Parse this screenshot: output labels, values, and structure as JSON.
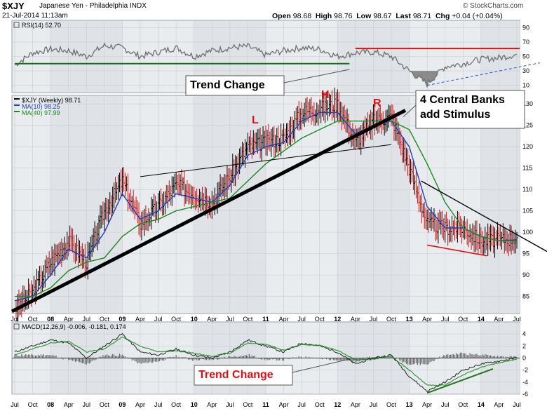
{
  "header": {
    "symbol": "$XJY",
    "name": "Japanese Yen - Philadelphia",
    "exchange": "INDX",
    "timestamp": "21-Jul-2014 11:13am",
    "open_label": "Open",
    "open": "98.68",
    "high_label": "High",
    "high": "98.76",
    "low_label": "Low",
    "low": "98.67",
    "last_label": "Last",
    "last": "98.71",
    "chg_label": "Chg",
    "chg": "+0.04 (+0.04%)",
    "copyright": "© StockCharts.com"
  },
  "colors": {
    "panel_bg": "#e9ecef",
    "price_bar": "#000000",
    "ma10": "#1f3fbf",
    "ma40": "#1a8a1a",
    "trendline": "#000000",
    "rsi_line": "#6e6e6e",
    "rsi_fill": "#7a7a7a",
    "rsi_level_red": "#e01010",
    "rsi_level_green": "#1a6e1a",
    "annotation_red": "#e01010",
    "macd_hist": "#666666"
  },
  "chart_data": [
    {
      "type": "line",
      "panel": "RSI",
      "legend": "RSI(14) 52.70",
      "ylim": [
        0,
        100
      ],
      "y_ticks": [
        10,
        30,
        50,
        70,
        90
      ],
      "series": [
        {
          "name": "RSI(14)",
          "x": [
            "2007-07",
            "2007-10",
            "2008-01",
            "2008-04",
            "2008-07",
            "2008-10",
            "2009-01",
            "2009-04",
            "2009-07",
            "2009-10",
            "2010-01",
            "2010-04",
            "2010-07",
            "2010-10",
            "2011-01",
            "2011-04",
            "2011-07",
            "2011-10",
            "2012-01",
            "2012-04",
            "2012-07",
            "2012-10",
            "2013-01",
            "2013-04",
            "2013-07",
            "2013-10",
            "2014-01",
            "2014-04",
            "2014-07"
          ],
          "values": [
            38,
            55,
            60,
            58,
            50,
            65,
            62,
            50,
            56,
            62,
            50,
            58,
            62,
            64,
            52,
            58,
            62,
            60,
            50,
            55,
            56,
            50,
            30,
            12,
            36,
            40,
            46,
            48,
            52.7
          ]
        }
      ],
      "levels": [
        {
          "value": 61,
          "from": "2012-04",
          "color": "red"
        },
        {
          "value": 40,
          "from": "2007-07",
          "to": "2012-03",
          "color": "green"
        }
      ]
    },
    {
      "type": "line",
      "panel": "Price",
      "legend": [
        "$XJY (Weekly) 98.71",
        "MA(10) 98.25",
        "MA(40) 97.99"
      ],
      "ylim": [
        81,
        132
      ],
      "y_ticks": [
        85,
        90,
        95,
        100,
        105,
        110,
        115,
        120,
        125,
        130
      ],
      "x_ticks": [
        "Jul",
        "Oct",
        "08",
        "Apr",
        "Jul",
        "Oct",
        "09",
        "Apr",
        "Jul",
        "Oct",
        "10",
        "Apr",
        "Jul",
        "Oct",
        "11",
        "Apr",
        "Jul",
        "Oct",
        "12",
        "Apr",
        "Jul",
        "Oct",
        "13",
        "Apr",
        "Jul",
        "Oct",
        "14",
        "Apr",
        "Jul"
      ],
      "series": [
        {
          "name": "$XJY (Weekly)",
          "x": [
            "2007-07",
            "2007-10",
            "2008-01",
            "2008-04",
            "2008-07",
            "2008-10",
            "2009-01",
            "2009-04",
            "2009-07",
            "2009-10",
            "2010-01",
            "2010-04",
            "2010-07",
            "2010-10",
            "2011-01",
            "2011-04",
            "2011-07",
            "2011-10",
            "2012-01",
            "2012-04",
            "2012-07",
            "2012-10",
            "2013-01",
            "2013-04",
            "2013-07",
            "2013-10",
            "2014-01",
            "2014-04",
            "2014-07"
          ],
          "values": [
            82,
            86,
            93,
            98,
            93,
            105,
            112,
            102,
            106,
            111,
            109,
            107,
            113,
            120,
            121,
            122,
            128,
            129,
            130,
            121,
            126,
            127,
            115,
            102,
            101,
            101,
            98,
            98.2,
            98.71
          ]
        },
        {
          "name": "MA(10)",
          "x": [
            "2007-07",
            "2007-10",
            "2008-01",
            "2008-04",
            "2008-07",
            "2008-10",
            "2009-01",
            "2009-04",
            "2009-07",
            "2009-10",
            "2010-01",
            "2010-04",
            "2010-07",
            "2010-10",
            "2011-01",
            "2011-04",
            "2011-07",
            "2011-10",
            "2012-01",
            "2012-04",
            "2012-07",
            "2012-10",
            "2013-01",
            "2013-04",
            "2013-07",
            "2013-10",
            "2014-01",
            "2014-04",
            "2014-07"
          ],
          "values": [
            84,
            85,
            90,
            96,
            94,
            100,
            109,
            103,
            105,
            109,
            108,
            107,
            111,
            118,
            120,
            121,
            126,
            128,
            128,
            123,
            125,
            126,
            120,
            106,
            101,
            101,
            99,
            98,
            98.25
          ]
        },
        {
          "name": "MA(40)",
          "x": [
            "2007-07",
            "2007-10",
            "2008-01",
            "2008-04",
            "2008-07",
            "2008-10",
            "2009-01",
            "2009-04",
            "2009-07",
            "2009-10",
            "2010-01",
            "2010-04",
            "2010-07",
            "2010-10",
            "2011-01",
            "2011-04",
            "2011-07",
            "2011-10",
            "2012-01",
            "2012-04",
            "2012-07",
            "2012-10",
            "2013-01",
            "2013-04",
            "2013-07",
            "2013-10",
            "2014-01",
            "2014-04",
            "2014-07"
          ],
          "values": [
            85,
            85,
            87,
            91,
            93,
            94,
            99,
            102,
            103,
            105,
            106,
            107,
            108,
            112,
            116,
            119,
            122,
            124,
            126,
            126,
            126,
            126,
            124,
            116,
            107,
            101,
            99,
            98,
            97.99
          ]
        }
      ]
    },
    {
      "type": "line",
      "panel": "MACD",
      "legend": "MACD(12,26,9) -0.006, -0.181, 0.174",
      "ylim": [
        -6,
        6
      ],
      "y_ticks": [
        -6,
        -4,
        -2,
        0,
        2,
        4
      ],
      "series": [
        {
          "name": "MACD",
          "x": [
            "2007-07",
            "2007-10",
            "2008-01",
            "2008-04",
            "2008-07",
            "2008-10",
            "2009-01",
            "2009-04",
            "2009-07",
            "2009-10",
            "2010-01",
            "2010-04",
            "2010-07",
            "2010-10",
            "2011-01",
            "2011-04",
            "2011-07",
            "2011-10",
            "2012-01",
            "2012-04",
            "2012-07",
            "2012-10",
            "2013-01",
            "2013-04",
            "2013-07",
            "2013-10",
            "2014-01",
            "2014-04",
            "2014-07"
          ],
          "values": [
            1,
            2,
            3,
            2.5,
            0,
            2,
            4,
            1,
            0.5,
            1.5,
            0.5,
            0,
            1,
            3,
            2,
            1,
            2.5,
            2,
            1,
            -1,
            0,
            0.5,
            -3,
            -5.5,
            -4,
            -2,
            -1,
            -0.5,
            -0.006
          ]
        },
        {
          "name": "Signal",
          "x": [
            "2007-07",
            "2007-10",
            "2008-01",
            "2008-04",
            "2008-07",
            "2008-10",
            "2009-01",
            "2009-04",
            "2009-07",
            "2009-10",
            "2010-01",
            "2010-04",
            "2010-07",
            "2010-10",
            "2011-01",
            "2011-04",
            "2011-07",
            "2011-10",
            "2012-01",
            "2012-04",
            "2012-07",
            "2012-10",
            "2013-01",
            "2013-04",
            "2013-07",
            "2013-10",
            "2014-01",
            "2014-04",
            "2014-07"
          ],
          "values": [
            0.5,
            1.5,
            2.5,
            2.8,
            1,
            1.5,
            3.5,
            2,
            1,
            1.2,
            0.8,
            0.3,
            0.8,
            2.5,
            2.3,
            1.3,
            2.2,
            2.1,
            1.3,
            -0.3,
            -0.2,
            0.3,
            -2,
            -4.5,
            -4.5,
            -2.8,
            -1.5,
            -0.8,
            -0.181
          ]
        }
      ]
    }
  ],
  "annotations": {
    "trend_change_top": "Trend Change",
    "trend_change_bottom": "Trend Change",
    "central_banks_line1": "4 Central Banks",
    "central_banks_line2": "add Stimulus",
    "label_l": "L",
    "label_h": "H",
    "label_r": "R"
  }
}
